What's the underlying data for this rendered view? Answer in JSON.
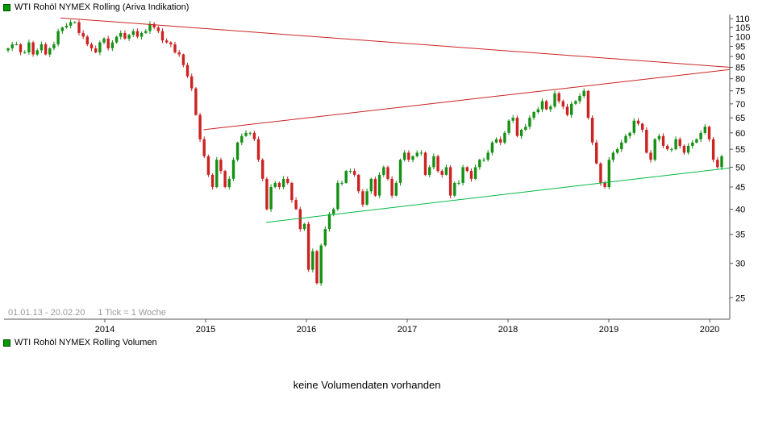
{
  "header": {
    "title": "WTI Rohöl NYMEX Rolling (Ariva Indikation)"
  },
  "volume": {
    "title": "WTI Rohöl NYMEX Rolling Volumen",
    "message": "keine Volumendaten vorhanden"
  },
  "colors": {
    "up": "#159015",
    "down": "#cc2222",
    "trend_red": "#cc2222",
    "trend_green": "#00bb44",
    "axis": "#555555",
    "tick_text": "#000000",
    "muted_text": "#9a9a9a",
    "legend_square": "#009900"
  },
  "chart_data": {
    "type": "candlestick",
    "title": "WTI Rohöl NYMEX Rolling (Ariva Indikation)",
    "period_label": "01.01.13 - 20.02.20",
    "tick_label": "1 Tick = 1 Woche",
    "y_scale": "log",
    "grid": "off",
    "y_ticks": [
      110,
      105,
      100,
      95,
      90,
      85,
      80,
      75,
      70,
      65,
      60,
      55,
      50,
      45,
      40,
      35,
      30,
      25
    ],
    "x_labels": [
      "2014",
      "2015",
      "2016",
      "2017",
      "2018",
      "2019",
      "2020"
    ],
    "x_domain": [
      2013.0,
      2020.2
    ],
    "y_domain": [
      22.3,
      112.5
    ],
    "candle_time_start": 2013.04,
    "candle_time_end": 2020.12,
    "first_open": 93,
    "closes": [
      94,
      96,
      96,
      92,
      92,
      97,
      91,
      93,
      96,
      91,
      94,
      96,
      103,
      105,
      106,
      108,
      108,
      102,
      100,
      96,
      94,
      92,
      97,
      99,
      94,
      97,
      100,
      102,
      99,
      101,
      103,
      100,
      102,
      103,
      107,
      105,
      103,
      98,
      97,
      96,
      92,
      91,
      86,
      81,
      76,
      66,
      58,
      53,
      48,
      45,
      52,
      49,
      45,
      47,
      52,
      57,
      59,
      60,
      60,
      58,
      52,
      47,
      40,
      45,
      46,
      45,
      47,
      46,
      42,
      40,
      36,
      37,
      29,
      32,
      27,
      33,
      36,
      39,
      40,
      46,
      46,
      49,
      49,
      48,
      44,
      41,
      44,
      47,
      43,
      48,
      50,
      47,
      43,
      46,
      52,
      54,
      52,
      53,
      54,
      54,
      48,
      50,
      53,
      49,
      48,
      50,
      43,
      46,
      46,
      50,
      49,
      47,
      50,
      52,
      52,
      54,
      57,
      58,
      57,
      60,
      64,
      65,
      59,
      61,
      62,
      65,
      67,
      68,
      71,
      68,
      69,
      74,
      71,
      69,
      66,
      70,
      71,
      73,
      75,
      65,
      57,
      51,
      46,
      45,
      52,
      54,
      55,
      57,
      59,
      60,
      64,
      63,
      61,
      54,
      52,
      58,
      59,
      56,
      55,
      55,
      58,
      56,
      54,
      56,
      57,
      58,
      60,
      62,
      58,
      52,
      50,
      53
    ],
    "wick_base": 0.004,
    "wick_var": 0.011,
    "lines": [
      {
        "name": "descending-trendline",
        "color": "#cc2222",
        "x1": 2013.56,
        "y1": 110.5,
        "x2": 2020.2,
        "y2": 85.0
      },
      {
        "name": "ascending-trendline-red",
        "color": "#cc2222",
        "x1": 2014.98,
        "y1": 61.0,
        "x2": 2020.2,
        "y2": 84.0
      },
      {
        "name": "ascending-trendline-green",
        "color": "#00bb44",
        "x1": 2015.6,
        "y1": 37.3,
        "x2": 2020.2,
        "y2": 49.8
      }
    ]
  }
}
